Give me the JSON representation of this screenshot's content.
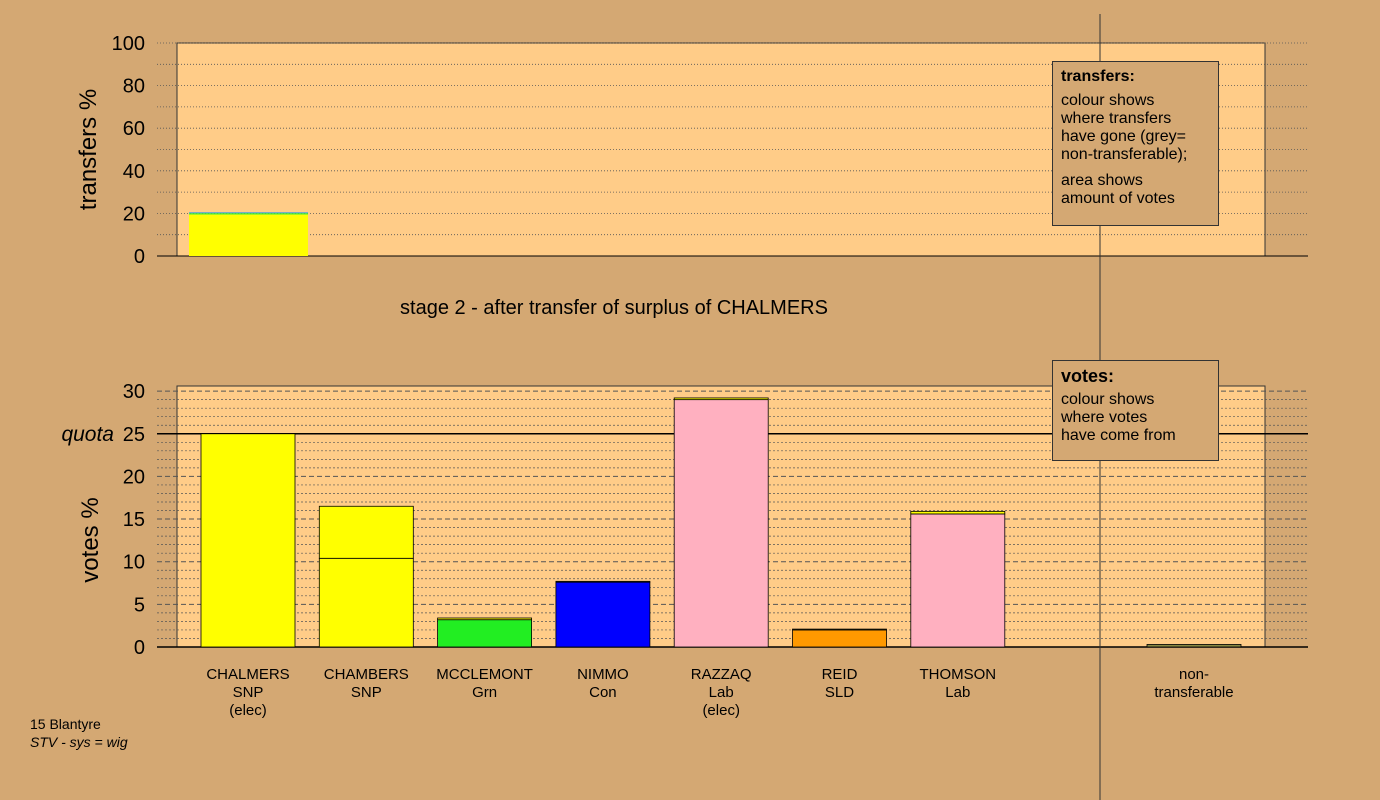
{
  "chart_data": [
    {
      "type": "bar",
      "name": "transfers",
      "ylabel": "transfers %",
      "ylim": [
        0,
        100
      ],
      "yticks": [
        0,
        20,
        40,
        60,
        80,
        100
      ],
      "bars": [
        {
          "candidate": "CHALMERS",
          "segments": [
            {
              "value": 19.5,
              "color": "#ffff00"
            },
            {
              "value": 0.6,
              "color": "#33ee33"
            },
            {
              "value": 0.5,
              "color": "#66aacc"
            }
          ]
        }
      ],
      "legend": {
        "title": "transfers:",
        "lines": [
          "colour shows",
          "where transfers",
          "have gone (grey=",
          "non-transferable);",
          "",
          "area shows",
          "amount of votes"
        ]
      }
    },
    {
      "type": "bar",
      "name": "votes",
      "title": "stage 2 - after transfer of surplus of CHALMERS",
      "ylabel": "votes %",
      "ylim": [
        0,
        30
      ],
      "yticks": [
        0,
        5,
        10,
        15,
        20,
        25,
        30
      ],
      "quota": 25,
      "quota_label": "quota",
      "candidates": [
        {
          "line1": "CHALMERS",
          "line2": "SNP",
          "line3": "(elec)",
          "segments": [
            {
              "value": 25.0,
              "color": "#ffff00"
            }
          ]
        },
        {
          "line1": "CHAMBERS",
          "line2": "SNP",
          "line3": "",
          "segments": [
            {
              "value": 10.4,
              "color": "#ffff00"
            },
            {
              "value": 6.1,
              "color": "#ffff00"
            }
          ]
        },
        {
          "line1": "MCCLEMONT",
          "line2": "Grn",
          "line3": "",
          "segments": [
            {
              "value": 3.2,
              "color": "#22ee22"
            },
            {
              "value": 0.2,
              "color": "#ffff00"
            }
          ]
        },
        {
          "line1": "NIMMO",
          "line2": "Con",
          "line3": "",
          "segments": [
            {
              "value": 7.6,
              "color": "#0000ff"
            },
            {
              "value": 0.1,
              "color": "#ffff00"
            }
          ]
        },
        {
          "line1": "RAZZAQ",
          "line2": "Lab",
          "line3": "(elec)",
          "segments": [
            {
              "value": 29.0,
              "color": "#ffb0c0"
            },
            {
              "value": 0.2,
              "color": "#ffff00"
            }
          ]
        },
        {
          "line1": "REID",
          "line2": "SLD",
          "line3": "",
          "segments": [
            {
              "value": 2.0,
              "color": "#ff9900"
            },
            {
              "value": 0.1,
              "color": "#ffff00"
            }
          ]
        },
        {
          "line1": "THOMSON",
          "line2": "Lab",
          "line3": "",
          "segments": [
            {
              "value": 15.6,
              "color": "#ffb0c0"
            },
            {
              "value": 0.3,
              "color": "#ffff00"
            }
          ]
        }
      ],
      "nontransferable": {
        "line1": "non-",
        "line2": "transferable",
        "value": 0.3,
        "color": "#888844"
      },
      "legend": {
        "title": "votes:",
        "lines": [
          "colour shows",
          "where votes",
          "have come from"
        ]
      }
    }
  ],
  "footer": {
    "line1": "15 Blantyre",
    "line2": "STV - sys = wig"
  }
}
